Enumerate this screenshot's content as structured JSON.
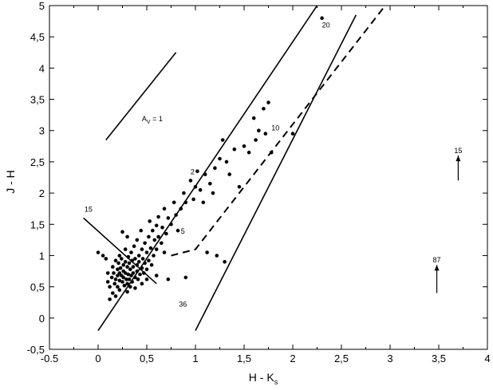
{
  "chart_data": {
    "type": "scatter",
    "xlabel": "H - K",
    "xlabel_sub": "s",
    "ylabel": "J - H",
    "xlim": [
      -0.5,
      4
    ],
    "ylim": [
      -0.5,
      5
    ],
    "xticks": [
      -0.5,
      0,
      0.5,
      1,
      1.5,
      2,
      2.5,
      3,
      3.5,
      4
    ],
    "xtick_labels": [
      "-0.5",
      "0",
      "0,5",
      "1",
      "1,5",
      "2",
      "2,5",
      "3",
      "3,5",
      "4"
    ],
    "yticks": [
      -0.5,
      0,
      0.5,
      1,
      1.5,
      2,
      2.5,
      3,
      3.5,
      4,
      4.5,
      5
    ],
    "ytick_labels": [
      "-0,5",
      "0",
      "0,5",
      "1",
      "1,5",
      "2",
      "2,5",
      "3",
      "3,5",
      "4",
      "4,5",
      "5"
    ],
    "grid": false,
    "series": [
      {
        "points": [
          [
            0.0,
            1.05
          ],
          [
            0.05,
            1.0
          ],
          [
            0.08,
            0.95
          ],
          [
            0.1,
            0.72
          ],
          [
            0.1,
            0.58
          ],
          [
            0.12,
            0.5
          ],
          [
            0.12,
            0.3
          ],
          [
            0.14,
            0.65
          ],
          [
            0.15,
            0.82
          ],
          [
            0.15,
            0.4
          ],
          [
            0.16,
            0.72
          ],
          [
            0.17,
            0.55
          ],
          [
            0.18,
            0.92
          ],
          [
            0.18,
            0.62
          ],
          [
            0.18,
            0.35
          ],
          [
            0.2,
            0.78
          ],
          [
            0.2,
            0.68
          ],
          [
            0.2,
            0.5
          ],
          [
            0.21,
            0.88
          ],
          [
            0.22,
            1.0
          ],
          [
            0.22,
            0.72
          ],
          [
            0.22,
            0.6
          ],
          [
            0.22,
            0.45
          ],
          [
            0.23,
            0.8
          ],
          [
            0.24,
            0.95
          ],
          [
            0.24,
            0.68
          ],
          [
            0.25,
            0.58
          ],
          [
            0.25,
            1.38
          ],
          [
            0.26,
            0.85
          ],
          [
            0.26,
            0.75
          ],
          [
            0.26,
            0.65
          ],
          [
            0.27,
            0.52
          ],
          [
            0.28,
            1.1
          ],
          [
            0.28,
            0.9
          ],
          [
            0.28,
            0.72
          ],
          [
            0.29,
            0.62
          ],
          [
            0.3,
            1.3
          ],
          [
            0.3,
            0.82
          ],
          [
            0.3,
            0.55
          ],
          [
            0.3,
            0.42
          ],
          [
            0.31,
            0.98
          ],
          [
            0.31,
            0.7
          ],
          [
            0.32,
            0.88
          ],
          [
            0.32,
            0.62
          ],
          [
            0.33,
            0.78
          ],
          [
            0.33,
            0.5
          ],
          [
            0.34,
            1.05
          ],
          [
            0.34,
            0.68
          ],
          [
            0.35,
            0.92
          ],
          [
            0.35,
            0.58
          ],
          [
            0.36,
            0.82
          ],
          [
            0.36,
            0.72
          ],
          [
            0.37,
            1.15
          ],
          [
            0.38,
            0.95
          ],
          [
            0.38,
            0.65
          ],
          [
            0.38,
            0.48
          ],
          [
            0.4,
            1.25
          ],
          [
            0.4,
            0.85
          ],
          [
            0.4,
            0.75
          ],
          [
            0.41,
            0.62
          ],
          [
            0.42,
            1.0
          ],
          [
            0.42,
            0.9
          ],
          [
            0.43,
            0.7
          ],
          [
            0.44,
            1.4
          ],
          [
            0.45,
            1.1
          ],
          [
            0.45,
            0.8
          ],
          [
            0.45,
            0.55
          ],
          [
            0.46,
            0.95
          ],
          [
            0.47,
            0.72
          ],
          [
            0.48,
            1.2
          ],
          [
            0.48,
            0.88
          ],
          [
            0.5,
            1.05
          ],
          [
            0.5,
            0.78
          ],
          [
            0.5,
            0.62
          ],
          [
            0.52,
            1.3
          ],
          [
            0.52,
            0.92
          ],
          [
            0.53,
            1.55
          ],
          [
            0.54,
            1.12
          ],
          [
            0.55,
            0.85
          ],
          [
            0.56,
            1.4
          ],
          [
            0.57,
            1.0
          ],
          [
            0.58,
            1.25
          ],
          [
            0.6,
            1.48
          ],
          [
            0.6,
            1.1
          ],
          [
            0.6,
            0.68
          ],
          [
            0.62,
            1.62
          ],
          [
            0.62,
            1.3
          ],
          [
            0.65,
            1.2
          ],
          [
            0.66,
            1.45
          ],
          [
            0.68,
            1.75
          ],
          [
            0.68,
            1.05
          ],
          [
            0.7,
            1.35
          ],
          [
            0.72,
            1.6
          ],
          [
            0.72,
            0.62
          ],
          [
            0.75,
            1.5
          ],
          [
            0.78,
            1.85
          ],
          [
            0.8,
            1.65
          ],
          [
            0.82,
            1.4
          ],
          [
            0.85,
            1.75
          ],
          [
            0.88,
            2.0
          ],
          [
            0.9,
            1.85
          ],
          [
            0.9,
            0.65
          ],
          [
            0.95,
            2.2
          ],
          [
            0.98,
            1.9
          ],
          [
            1.0,
            2.1
          ],
          [
            1.02,
            2.35
          ],
          [
            1.05,
            2.05
          ],
          [
            1.08,
            1.85
          ],
          [
            1.1,
            2.3
          ],
          [
            1.12,
            1.05
          ],
          [
            1.15,
            2.15
          ],
          [
            1.18,
            2.0
          ],
          [
            1.2,
            2.4
          ],
          [
            1.22,
            1.0
          ],
          [
            1.25,
            2.55
          ],
          [
            1.28,
            2.85
          ],
          [
            1.3,
            0.9
          ],
          [
            1.32,
            2.5
          ],
          [
            1.35,
            2.3
          ],
          [
            1.4,
            2.7
          ],
          [
            1.45,
            2.1
          ],
          [
            1.5,
            2.75
          ],
          [
            1.55,
            2.65
          ],
          [
            1.6,
            3.2
          ],
          [
            1.62,
            2.85
          ],
          [
            1.65,
            3.0
          ],
          [
            1.7,
            3.35
          ],
          [
            1.72,
            2.95
          ],
          [
            1.75,
            3.45
          ],
          [
            1.78,
            2.65
          ],
          [
            2.0,
            2.95
          ],
          [
            2.3,
            4.8
          ]
        ]
      }
    ],
    "lines": [
      {
        "style": "solid",
        "points": [
          [
            0.0,
            -0.2
          ],
          [
            2.25,
            5.0
          ]
        ]
      },
      {
        "style": "solid",
        "points": [
          [
            1.0,
            -0.2
          ],
          [
            2.65,
            4.85
          ]
        ]
      },
      {
        "style": "dashed",
        "points": [
          [
            0.75,
            1.0
          ],
          [
            1.0,
            1.1
          ],
          [
            2.95,
            5.0
          ]
        ]
      },
      {
        "style": "solid",
        "points": [
          [
            -0.15,
            1.6
          ],
          [
            0.6,
            0.55
          ]
        ]
      },
      {
        "style": "solid",
        "points": [
          [
            0.08,
            2.85
          ],
          [
            0.8,
            4.25
          ]
        ]
      }
    ],
    "arrows": [
      {
        "from": [
          3.7,
          2.2
        ],
        "to": [
          3.7,
          2.6
        ],
        "label": "15"
      },
      {
        "from": [
          3.48,
          0.4
        ],
        "to": [
          3.48,
          0.85
        ],
        "label": "87"
      }
    ],
    "annotations": [
      {
        "text": "20",
        "at": [
          2.3,
          4.65
        ]
      },
      {
        "text": "10",
        "at": [
          1.78,
          3.0
        ]
      },
      {
        "text": "5",
        "at": [
          0.85,
          1.35
        ]
      },
      {
        "text": "2",
        "at": [
          0.95,
          2.3
        ]
      },
      {
        "text": "15",
        "at": [
          -0.14,
          1.7
        ]
      },
      {
        "text": "36",
        "at": [
          0.83,
          0.18
        ]
      }
    ],
    "av_label": {
      "main": "A",
      "sub": "V",
      "suffix": " = 1",
      "at": [
        0.45,
        3.15
      ]
    }
  }
}
